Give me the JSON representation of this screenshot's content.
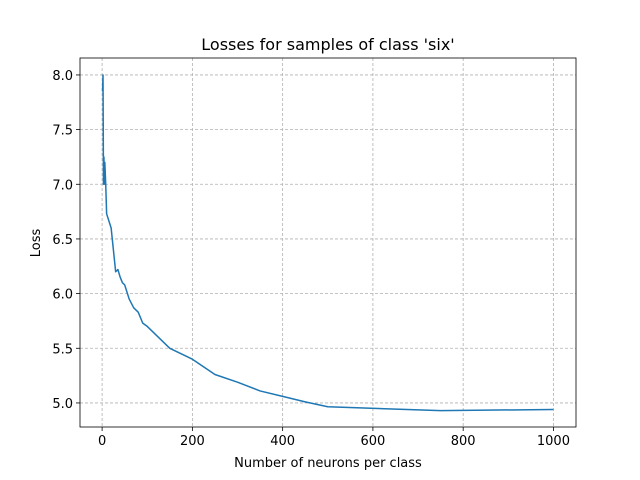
{
  "chart_data": {
    "type": "line",
    "title": "Losses for samples of class 'six'",
    "xlabel": "Number of neurons per class",
    "ylabel": "Loss",
    "series": [
      {
        "color": "#1f77b4",
        "x": [
          1,
          2,
          3,
          4,
          5,
          6,
          8,
          10,
          20,
          25,
          30,
          35,
          40,
          45,
          50,
          60,
          70,
          80,
          90,
          100,
          150,
          200,
          250,
          300,
          350,
          400,
          450,
          500,
          750,
          1000
        ],
        "values": [
          7.85,
          8.0,
          7.0,
          7.25,
          7.0,
          7.2,
          7.0,
          6.73,
          6.6,
          6.4,
          6.2,
          6.22,
          6.15,
          6.1,
          6.08,
          5.95,
          5.87,
          5.83,
          5.73,
          5.7,
          5.5,
          5.4,
          5.26,
          5.19,
          5.11,
          5.06,
          5.01,
          4.965,
          4.93,
          4.94
        ]
      }
    ],
    "xlim": [
      -49,
      1050
    ],
    "ylim": [
      4.78,
      8.155
    ],
    "xticks": [
      0,
      200,
      400,
      600,
      800,
      1000
    ],
    "yticks": [
      {
        "value": 5,
        "label": "5.0"
      },
      5.5,
      {
        "value": 6,
        "label": "6.0"
      },
      6.5,
      {
        "value": 7,
        "label": "7.0"
      },
      7.5,
      {
        "value": 8,
        "label": "8.0"
      }
    ],
    "grid": true
  }
}
